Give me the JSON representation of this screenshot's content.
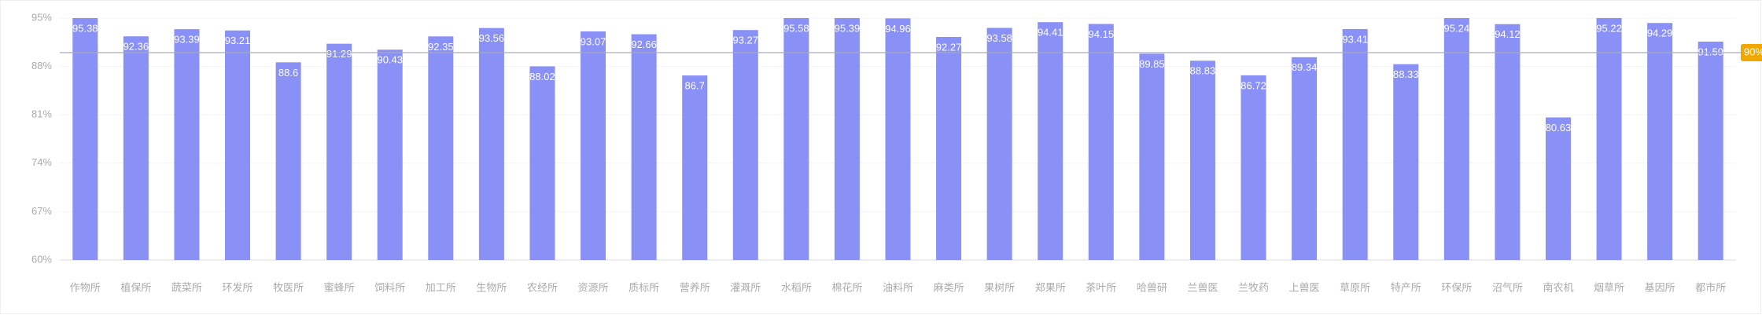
{
  "chart_data": {
    "type": "bar",
    "categories": [
      "作物所",
      "植保所",
      "蔬菜所",
      "环发所",
      "牧医所",
      "蜜蜂所",
      "饲料所",
      "加工所",
      "生物所",
      "农经所",
      "资源所",
      "质标所",
      "营养所",
      "灌溉所",
      "水稻所",
      "棉花所",
      "油料所",
      "麻类所",
      "果树所",
      "郑果所",
      "茶叶所",
      "哈兽研",
      "兰兽医",
      "兰牧药",
      "上兽医",
      "草原所",
      "特产所",
      "环保所",
      "沼气所",
      "南农机",
      "烟草所",
      "基因所",
      "都市所"
    ],
    "values": [
      95.38,
      92.36,
      93.39,
      93.21,
      88.6,
      91.29,
      90.43,
      92.35,
      93.56,
      88.02,
      93.07,
      92.66,
      86.7,
      93.27,
      95.58,
      95.39,
      94.96,
      92.27,
      93.58,
      94.41,
      94.15,
      89.85,
      88.83,
      86.72,
      89.34,
      93.41,
      88.33,
      95.24,
      94.12,
      80.63,
      95.22,
      94.29,
      91.59
    ],
    "color": "#8a91f6",
    "ylim": [
      60,
      95
    ],
    "yticks": [
      {
        "value": 60,
        "label": "60%"
      },
      {
        "value": 67,
        "label": "67%"
      },
      {
        "value": 74,
        "label": "74%"
      },
      {
        "value": 81,
        "label": "81%"
      },
      {
        "value": 88,
        "label": "88%"
      },
      {
        "value": 95,
        "label": "95%"
      }
    ],
    "grid": true,
    "reference_line": {
      "value": 90,
      "label": "90%",
      "color": "#f0a800"
    }
  }
}
